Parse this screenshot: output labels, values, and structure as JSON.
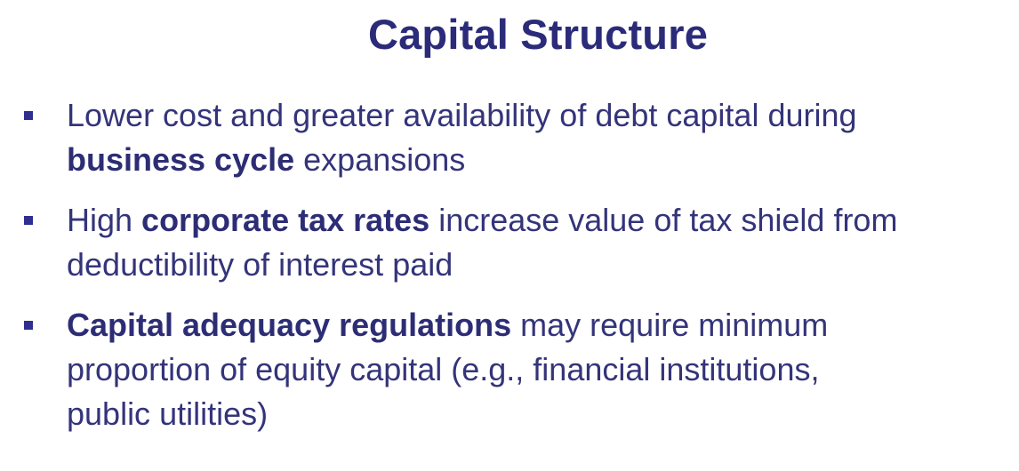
{
  "slide": {
    "title": "Capital Structure",
    "bullets": [
      {
        "line1_bold": "",
        "line1_text": "Lower cost and greater availability of debt capital during",
        "line2_bold": "business cycle",
        "line2_text": " expansions"
      },
      {
        "line1_prefix": "High ",
        "line1_bold": "corporate tax rates",
        "line1_text": " increase value of tax shield from",
        "line2_text": "deductibility of interest paid"
      },
      {
        "line1_bold": "Capital adequacy regulations",
        "line1_text": " may require minimum",
        "line2_text": "proportion of equity capital (e.g., financial institutions,",
        "line3_text": "public utilities)"
      }
    ]
  },
  "colors": {
    "title": "#2b2b7a",
    "text": "#34347a",
    "bullet_marker": "#2f2f8f",
    "background": "#ffffff"
  }
}
